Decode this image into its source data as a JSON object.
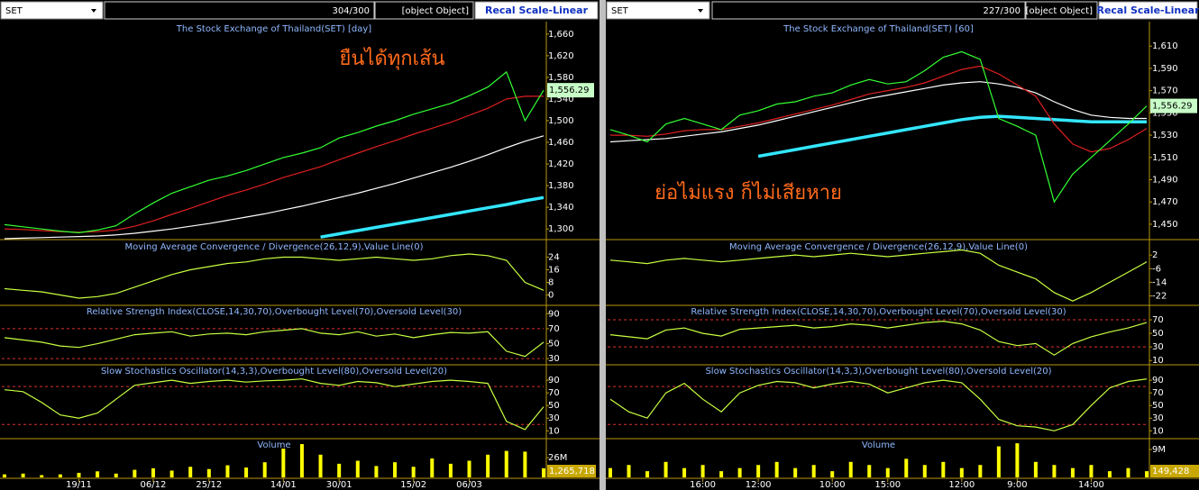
{
  "panels": [
    {
      "symbol": "SET",
      "count": "304/300",
      "price": {
        "ylim": [
          1282,
          1683
        ],
        "yticks": [
          {
            "value": 1300,
            "label": "1,300"
          },
          {
            "value": 1340,
            "label": "1,340"
          },
          {
            "value": 1380,
            "label": "1,380"
          },
          {
            "value": 1420,
            "label": "1,420"
          },
          {
            "value": 1460,
            "label": "1,460"
          },
          {
            "value": 1500,
            "label": "1,500"
          },
          {
            "value": 1540,
            "label": "1,540"
          },
          {
            "value": 1580,
            "label": "1,580"
          },
          {
            "value": 1620,
            "label": "1,620"
          },
          {
            "value": 1660,
            "label": "1,660"
          }
        ],
        "series": [
          {
            "color": "#ffffff",
            "values": [
              1282,
              1283,
              1284,
              1285,
              1286,
              1287,
              1289,
              1292,
              1296,
              1300,
              1305,
              1310,
              1316,
              1322,
              1328,
              1335,
              1342,
              1350,
              1358,
              1366,
              1375,
              1384,
              1394,
              1404,
              1414,
              1425,
              1437,
              1450,
              1462,
              1472
            ]
          },
          {
            "color": "#33e6ff",
            "values": [
              null,
              null,
              null,
              null,
              null,
              null,
              null,
              null,
              null,
              null,
              null,
              null,
              null,
              null,
              null,
              null,
              null,
              1285,
              1291,
              1297,
              1303,
              1309,
              1315,
              1321,
              1327,
              1333,
              1339,
              1345,
              1352,
              1358
            ]
          },
          {
            "color": "#e02020",
            "values": [
              1300,
              1299,
              1297,
              1295,
              1294,
              1295,
              1298,
              1305,
              1315,
              1327,
              1338,
              1350,
              1362,
              1372,
              1383,
              1395,
              1405,
              1415,
              1428,
              1440,
              1452,
              1463,
              1475,
              1486,
              1497,
              1510,
              1523,
              1540,
              1545,
              1545
            ]
          },
          {
            "color": "#33ff33",
            "values": [
              1308,
              1304,
              1300,
              1296,
              1293,
              1298,
              1306,
              1328,
              1348,
              1366,
              1378,
              1390,
              1398,
              1408,
              1420,
              1432,
              1440,
              1450,
              1468,
              1478,
              1490,
              1500,
              1512,
              1522,
              1532,
              1546,
              1562,
              1590,
              1500,
              1556.29
            ]
          }
        ]
      },
      "button": "Recal Scale-Linear",
      "title": "The Stock Exchange of Thailand(SET) [day]",
      "annotation": "ยืนได้ทุกเส้น",
      "last_price": "1,556.29",
      "last_volume": "1,265,718",
      "x_labels": [
        null,
        null,
        null,
        null,
        "19/11",
        null,
        null,
        null,
        "06/12",
        null,
        null,
        "25/12",
        null,
        null,
        null,
        "14/01",
        null,
        null,
        "30/01",
        null,
        null,
        null,
        "15/02",
        null,
        null,
        "06/03",
        null,
        null,
        null,
        null
      ],
      "macd": {
        "title": "Moving Average Convergence / Divergence(26,12,9),Value Line(0)",
        "ylim": [
          -6,
          34
        ],
        "yticks": [
          0,
          8,
          16,
          24
        ],
        "series": [
          {
            "color": "#c8ff40",
            "values": [
              4,
              3,
              2,
              0,
              -2,
              -1,
              1,
              5,
              9,
              13,
              16,
              18,
              20,
              21,
              23,
              24,
              24,
              23,
              22,
              23,
              24,
              23,
              22,
              23,
              25,
              26,
              25,
              22,
              8,
              3
            ]
          }
        ]
      },
      "rsi": {
        "title": "Relative Strength Index(CLOSE,14,30,70),Overbought Level(70),Oversold Level(30)",
        "ylim": [
          23,
          100
        ],
        "yticks": [
          30,
          50,
          70,
          90
        ],
        "levels": [
          70,
          30
        ],
        "series": [
          {
            "color": "#c8ff40",
            "values": [
              58,
              55,
              52,
              47,
              45,
              50,
              56,
              62,
              64,
              66,
              60,
              63,
              64,
              62,
              66,
              68,
              70,
              64,
              62,
              66,
              60,
              63,
              58,
              62,
              65,
              64,
              66,
              40,
              33,
              52
            ]
          }
        ]
      },
      "stoch": {
        "title": "Slow Stochastics Oscillator(14,3,3),Overbought Level(80),Oversold Level(20)",
        "ylim": [
          -1,
          113
        ],
        "yticks": [
          10,
          30,
          50,
          70,
          90
        ],
        "levels": [
          80,
          20
        ],
        "series": [
          {
            "color": "#c8ff40",
            "values": [
              75,
              72,
              55,
              35,
              30,
              38,
              60,
              82,
              86,
              90,
              85,
              88,
              90,
              87,
              89,
              90,
              92,
              85,
              82,
              88,
              86,
              80,
              84,
              88,
              90,
              88,
              85,
              25,
              12,
              48
            ]
          }
        ]
      },
      "volume": {
        "title": "Volume",
        "ylim": [
          0,
          50
        ],
        "yticks": [
          {
            "value": 26,
            "label": "26M"
          }
        ],
        "color": "#ffff00",
        "values": [
          4,
          5,
          3,
          4,
          6,
          8,
          5,
          10,
          12,
          9,
          14,
          11,
          16,
          13,
          20,
          38,
          44,
          30,
          18,
          22,
          15,
          20,
          14,
          25,
          18,
          22,
          30,
          35,
          34,
          12
        ]
      }
    },
    {
      "symbol": "SET",
      "count": "227/300",
      "price": {
        "ylim": [
          1437,
          1632
        ],
        "yticks": [
          {
            "value": 1450,
            "label": "1,450"
          },
          {
            "value": 1470,
            "label": "1,470"
          },
          {
            "value": 1490,
            "label": "1,490"
          },
          {
            "value": 1510,
            "label": "1,510"
          },
          {
            "value": 1530,
            "label": "1,530"
          },
          {
            "value": 1550,
            "label": "1,550"
          },
          {
            "value": 1570,
            "label": "1,570"
          },
          {
            "value": 1590,
            "label": "1,590"
          },
          {
            "value": 1610,
            "label": "1,610"
          }
        ],
        "series": [
          {
            "color": "#ffffff",
            "values": [
              1524,
              1525,
              1526,
              1527,
              1529,
              1531,
              1533,
              1536,
              1539,
              1543,
              1547,
              1551,
              1555,
              1559,
              1563,
              1566,
              1569,
              1572,
              1575,
              1577,
              1578,
              1576,
              1573,
              1568,
              1560,
              1553,
              1548,
              1546,
              1545,
              1545
            ]
          },
          {
            "color": "#33e6ff",
            "values": [
              null,
              null,
              null,
              null,
              null,
              null,
              null,
              null,
              1511,
              1514,
              1517,
              1520,
              1523,
              1526,
              1529,
              1532,
              1535,
              1538,
              1541,
              1544,
              1546,
              1547,
              1546,
              1545,
              1544,
              1543,
              1542,
              1542,
              1542,
              1542
            ]
          },
          {
            "color": "#e02020",
            "values": [
              1530,
              1530,
              1529,
              1531,
              1534,
              1535,
              1535,
              1538,
              1541,
              1545,
              1549,
              1553,
              1557,
              1562,
              1567,
              1570,
              1573,
              1577,
              1583,
              1589,
              1592,
              1585,
              1575,
              1565,
              1540,
              1522,
              1515,
              1518,
              1526,
              1536
            ]
          },
          {
            "color": "#33ff33",
            "values": [
              1535,
              1530,
              1524,
              1540,
              1545,
              1540,
              1535,
              1548,
              1552,
              1558,
              1560,
              1565,
              1568,
              1575,
              1580,
              1576,
              1578,
              1588,
              1600,
              1605,
              1598,
              1545,
              1538,
              1530,
              1470,
              1495,
              1510,
              1525,
              1540,
              1556.29
            ]
          }
        ]
      },
      "button": "Recal Scale-Linear",
      "title": "The Stock Exchange of Thailand(SET) [60]",
      "annotation": "ย่อไม่แรง ก็ไม่เสียหาย",
      "last_price": "1,556.29",
      "last_volume": "149,428",
      "x_labels": [
        null,
        null,
        null,
        null,
        null,
        "16:00",
        null,
        null,
        "12:00",
        null,
        null,
        null,
        "10:00",
        null,
        null,
        "15:00",
        null,
        null,
        null,
        "12:00",
        null,
        null,
        "9:00",
        null,
        null,
        null,
        "14:00",
        null,
        null,
        null
      ],
      "macd": {
        "title": "Moving Average Convergence / Divergence(26,12,9),Value Line(0)",
        "ylim": [
          -27,
          10
        ],
        "yticks": [
          -22,
          -14,
          -6,
          2
        ],
        "series": [
          {
            "color": "#c8ff40",
            "values": [
              -1,
              -2,
              -3,
              -1,
              0,
              -1,
              -2,
              -1,
              0,
              1,
              2,
              1,
              2,
              3,
              2,
              1,
              2,
              3,
              4,
              5,
              3,
              -4,
              -8,
              -12,
              -20,
              -25,
              -20,
              -14,
              -8,
              -2
            ]
          }
        ]
      },
      "rsi": {
        "title": "Relative Strength Index(CLOSE,14,30,70),Overbought Level(70),Oversold Level(30)",
        "ylim": [
          5,
          90
        ],
        "yticks": [
          10,
          30,
          50,
          70
        ],
        "levels": [
          70,
          30
        ],
        "series": [
          {
            "color": "#c8ff40",
            "values": [
              48,
              45,
              42,
              55,
              58,
              50,
              46,
              56,
              58,
              60,
              62,
              58,
              60,
              64,
              62,
              58,
              62,
              66,
              68,
              64,
              55,
              38,
              32,
              35,
              18,
              35,
              45,
              52,
              58,
              66
            ]
          }
        ]
      },
      "stoch": {
        "title": "Slow Stochastics Oscillator(14,3,3),Overbought Level(80),Oversold Level(20)",
        "ylim": [
          -1,
          113
        ],
        "yticks": [
          10,
          30,
          50,
          70,
          90
        ],
        "levels": [
          80,
          20
        ],
        "series": [
          {
            "color": "#c8ff40",
            "values": [
              60,
              40,
              30,
              70,
              85,
              60,
              40,
              70,
              82,
              88,
              86,
              78,
              84,
              88,
              84,
              70,
              78,
              86,
              90,
              86,
              60,
              28,
              18,
              16,
              10,
              20,
              50,
              78,
              88,
              92
            ]
          }
        ]
      },
      "volume": {
        "title": "Volume",
        "ylim": [
          0,
          12.2
        ],
        "yticks": [
          {
            "value": 9,
            "label": "9M"
          }
        ],
        "color": "#ffff00",
        "values": [
          3,
          4,
          2,
          5,
          3,
          4,
          2,
          3,
          4,
          5,
          3,
          4,
          2,
          5,
          4,
          3,
          6,
          4,
          5,
          3,
          4,
          10,
          11,
          5,
          4,
          3,
          4,
          2,
          3,
          2
        ]
      }
    }
  ]
}
